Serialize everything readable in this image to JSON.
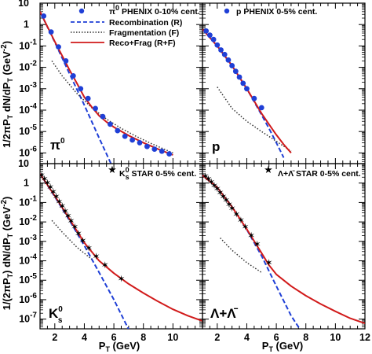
{
  "colors": {
    "recombination": "#1f3fd6",
    "fragmentation": "#333333",
    "total": "#d11a1a",
    "phenix_marker": "#1f3fd6",
    "star_marker": "#000000"
  },
  "axes": {
    "x_label_main": "P",
    "x_label_sub": "T",
    "x_label_unit": " (GeV)",
    "y_label_top": "1/2πP",
    "y_label_top_sub": "T",
    "y_label_top_rest": " dN/dP",
    "y_label_top_sub2": "T",
    "y_label_top_unit": " (GeV",
    "y_label_top_pow": "-2",
    "y_label_top_close": ")",
    "y_label_bottom": "1/(2πP",
    "y_label_bottom_sub": "T",
    "y_label_bottom_rest": ") dN/dP",
    "y_label_bottom_sub2": "T",
    "y_label_bottom_unit": " (GeV",
    "y_label_bottom_pow": "-2",
    "y_label_bottom_close": ")",
    "x_ticks": [
      "2",
      "4",
      "6",
      "8",
      "10",
      "12"
    ],
    "x_ticks_left": [
      "2",
      "4",
      "6",
      "8",
      "10",
      "12"
    ],
    "y_ticks_top": [
      {
        "m": "10",
        "e": ""
      },
      {
        "m": "1",
        "e": ""
      },
      {
        "m": "10",
        "e": "-1"
      },
      {
        "m": "10",
        "e": "-2"
      },
      {
        "m": "10",
        "e": "-3"
      },
      {
        "m": "10",
        "e": "-4"
      },
      {
        "m": "10",
        "e": "-5"
      },
      {
        "m": "10",
        "e": "-6"
      }
    ],
    "y_ticks_bottom": [
      {
        "m": "10",
        "e": ""
      },
      {
        "m": "1",
        "e": ""
      },
      {
        "m": "10",
        "e": "-1"
      },
      {
        "m": "10",
        "e": "-2"
      },
      {
        "m": "10",
        "e": "-3"
      },
      {
        "m": "10",
        "e": "-4"
      },
      {
        "m": "10",
        "e": "-5"
      },
      {
        "m": "10",
        "e": "-6"
      },
      {
        "m": "10",
        "e": "-7"
      }
    ]
  },
  "legend": {
    "phenix_pi0": "π",
    "phenix_pi0_sup": "0",
    "phenix_pi0_rest": " PHENIX 0-10% cent.",
    "recombination": "Recombination (R)",
    "fragmentation": "Fragmentation (F)",
    "total": "Reco+Frag (R+F)",
    "phenix_p": "p PHENIX 0-5% cent.",
    "star_k0s": "K",
    "star_k0s_sup": "0",
    "star_k0s_sub": "s",
    "star_k0s_rest": " STAR 0-5% cent.",
    "star_lambda": "Λ+Λ̄ STAR 0-5% cent."
  },
  "panel_labels": {
    "pi0": "π",
    "pi0_sup": "0",
    "p": "p",
    "k0s": "K",
    "k0s_sup": "0",
    "k0s_sub": "s",
    "lambda": "Λ+Λ̄"
  },
  "chart_data": [
    {
      "type": "line",
      "panel": "pi0",
      "xlim": [
        1,
        12
      ],
      "ylim_log10": [
        -6.5,
        1
      ],
      "yscale": "log",
      "series": [
        {
          "name": "π0 PHENIX 0-10% cent.",
          "kind": "markers",
          "x": [
            1.25,
            1.75,
            2.25,
            2.75,
            3.25,
            3.75,
            4.25,
            4.75,
            5.25,
            5.75,
            6.25,
            6.75,
            7.25,
            7.75,
            8.25,
            8.75,
            9.25,
            9.75
          ],
          "y": [
            2.5,
            0.45,
            0.09,
            0.02,
            0.004,
            0.001,
            0.00035,
            0.00012,
            5e-05,
            2.2e-05,
            1.1e-05,
            6e-06,
            4e-06,
            3e-06,
            2e-06,
            1.5e-06,
            1.2e-06,
            9e-07
          ]
        },
        {
          "name": "Recombination (R)",
          "kind": "dashed",
          "x": [
            1.0,
            2.0,
            3.0,
            4.0,
            5.0,
            6.0,
            7.0
          ],
          "y": [
            4.0,
            0.15,
            0.005,
            0.00017,
            5e-06,
            1.6e-07,
            5e-09
          ]
        },
        {
          "name": "Fragmentation (F)",
          "kind": "dotted",
          "x": [
            1.8,
            2.5,
            3.5,
            4.5,
            5.5,
            6.5,
            7.5,
            8.5,
            9.5,
            10.0
          ],
          "y": [
            0.02,
            0.004,
            0.0006,
            0.00013,
            3.8e-05,
            1.4e-05,
            6e-06,
            2.8e-06,
            1.4e-06,
            1e-06
          ]
        },
        {
          "name": "Reco+Frag (R+F)",
          "kind": "solid",
          "x": [
            1.0,
            1.5,
            2.0,
            2.5,
            3.0,
            3.5,
            4.0,
            4.5,
            5.0,
            5.5,
            6.0,
            7.0,
            8.0,
            9.0,
            10.0
          ],
          "y": [
            4.0,
            0.8,
            0.16,
            0.035,
            0.0075,
            0.0018,
            0.0004,
            0.00014,
            5.5e-05,
            2.8e-05,
            1.6e-05,
            6.5e-06,
            3e-06,
            1.5e-06,
            8e-07
          ]
        }
      ]
    },
    {
      "type": "line",
      "panel": "p",
      "xlim": [
        1,
        12
      ],
      "ylim_log10": [
        -6.5,
        1
      ],
      "yscale": "log",
      "series": [
        {
          "name": "p PHENIX 0-5% cent.",
          "kind": "markers",
          "x": [
            1.25,
            1.5,
            1.75,
            2.0,
            2.25,
            2.5,
            2.75,
            3.0,
            3.25,
            3.5,
            3.75,
            4.0,
            4.5,
            5.0
          ],
          "y": [
            0.5,
            0.32,
            0.2,
            0.11,
            0.065,
            0.04,
            0.022,
            0.012,
            0.0065,
            0.0035,
            0.0018,
            0.001,
            0.00035,
            0.00013
          ]
        },
        {
          "name": "Recombination (R)",
          "kind": "dashed",
          "x": [
            1.0,
            2.0,
            3.0,
            4.0,
            5.0,
            5.5,
            6.0,
            6.5
          ],
          "y": [
            0.6,
            0.1,
            0.012,
            0.001,
            6e-05,
            1.4e-05,
            3e-06,
            6e-07
          ]
        },
        {
          "name": "Fragmentation (F)",
          "kind": "dotted",
          "x": [
            2.0,
            3.0,
            4.0,
            5.0,
            6.0,
            7.0
          ],
          "y": [
            0.0012,
            0.00012,
            3e-05,
            1e-05,
            3.5e-06,
            1.2e-06
          ]
        },
        {
          "name": "Reco+Frag (R+F)",
          "kind": "solid",
          "x": [
            1.0,
            2.0,
            3.0,
            4.0,
            5.0,
            5.5,
            6.0,
            6.5,
            7.0
          ],
          "y": [
            0.6,
            0.1,
            0.012,
            0.001,
            7e-05,
            2.2e-05,
            7e-06,
            2.5e-06,
            1e-06
          ]
        }
      ]
    },
    {
      "type": "line",
      "panel": "k0s",
      "xlim": [
        1,
        12
      ],
      "ylim_log10": [
        -7.5,
        1
      ],
      "yscale": "log",
      "series": [
        {
          "name": "K0s STAR 0-5% cent.",
          "kind": "markers",
          "x": [
            1.1,
            1.3,
            1.5,
            1.7,
            1.9,
            2.1,
            2.3,
            2.5,
            2.7,
            2.9,
            3.1,
            3.35,
            3.6,
            3.9,
            4.3,
            4.8,
            5.4,
            6.5
          ],
          "y": [
            2.5,
            1.6,
            1.0,
            0.6,
            0.35,
            0.2,
            0.11,
            0.065,
            0.035,
            0.02,
            0.011,
            0.0055,
            0.0025,
            0.0011,
            0.00045,
            0.00017,
            6e-05,
            1.2e-05
          ]
        },
        {
          "name": "Recombination (R)",
          "kind": "dashed",
          "x": [
            1.0,
            2.0,
            3.0,
            4.0,
            5.0,
            6.0,
            7.0
          ],
          "y": [
            3.0,
            0.2,
            0.012,
            0.0006,
            2.5e-05,
            1e-06,
            3e-08
          ]
        },
        {
          "name": "Fragmentation (F)",
          "kind": "dotted",
          "x": [
            1.8,
            2.5,
            3.5,
            4.5
          ],
          "y": [
            0.012,
            0.003,
            0.0005,
            0.00012
          ]
        },
        {
          "name": "Reco+Frag (R+F)",
          "kind": "solid",
          "x": [
            1.0,
            2.0,
            3.0,
            4.0,
            5.0,
            6.0,
            7.0,
            8.0,
            9.0,
            10.0,
            11.0,
            12.0
          ],
          "y": [
            3.0,
            0.22,
            0.014,
            0.00085,
            0.0001,
            2.3e-05,
            6.5e-06,
            2.2e-06,
            8e-07,
            3.2e-07,
            1.5e-07,
            8e-08
          ]
        }
      ]
    },
    {
      "type": "line",
      "panel": "lambda",
      "xlim": [
        1,
        12
      ],
      "ylim_log10": [
        -7.5,
        1
      ],
      "yscale": "log",
      "series": [
        {
          "name": "Λ+Λ̄ STAR 0-5% cent.",
          "kind": "markers",
          "x": [
            1.2,
            1.4,
            1.6,
            1.8,
            2.0,
            2.2,
            2.4,
            2.6,
            2.8,
            3.0,
            3.3,
            3.6,
            3.9,
            4.3,
            4.7,
            5.5
          ],
          "y": [
            2.2,
            1.6,
            1.1,
            0.75,
            0.5,
            0.32,
            0.2,
            0.13,
            0.08,
            0.05,
            0.025,
            0.012,
            0.0055,
            0.002,
            0.0007,
            8e-05
          ]
        },
        {
          "name": "Recombination (R)",
          "kind": "dashed",
          "x": [
            1.0,
            2.0,
            3.0,
            4.0,
            5.0,
            6.0,
            7.0,
            7.6
          ],
          "y": [
            2.5,
            0.6,
            0.06,
            0.004,
            0.00018,
            5e-06,
            1.5e-07,
            3e-08
          ]
        },
        {
          "name": "Fragmentation (F)",
          "kind": "dotted",
          "x": [
            2.2,
            3.0,
            4.0,
            5.0
          ],
          "y": [
            0.0015,
            0.00035,
            8e-05,
            2.5e-05
          ]
        },
        {
          "name": "Reco+Frag (R+F)",
          "kind": "solid",
          "x": [
            1.0,
            2.0,
            3.0,
            4.0,
            5.0,
            5.5,
            6.0,
            7.0,
            8.0,
            9.0,
            10.0,
            11.0,
            12.0
          ],
          "y": [
            2.5,
            0.6,
            0.06,
            0.0042,
            0.00025,
            6e-05,
            2e-05,
            5e-06,
            1.6e-06,
            6e-07,
            2.5e-07,
            1.1e-07,
            6e-08
          ]
        }
      ]
    }
  ]
}
